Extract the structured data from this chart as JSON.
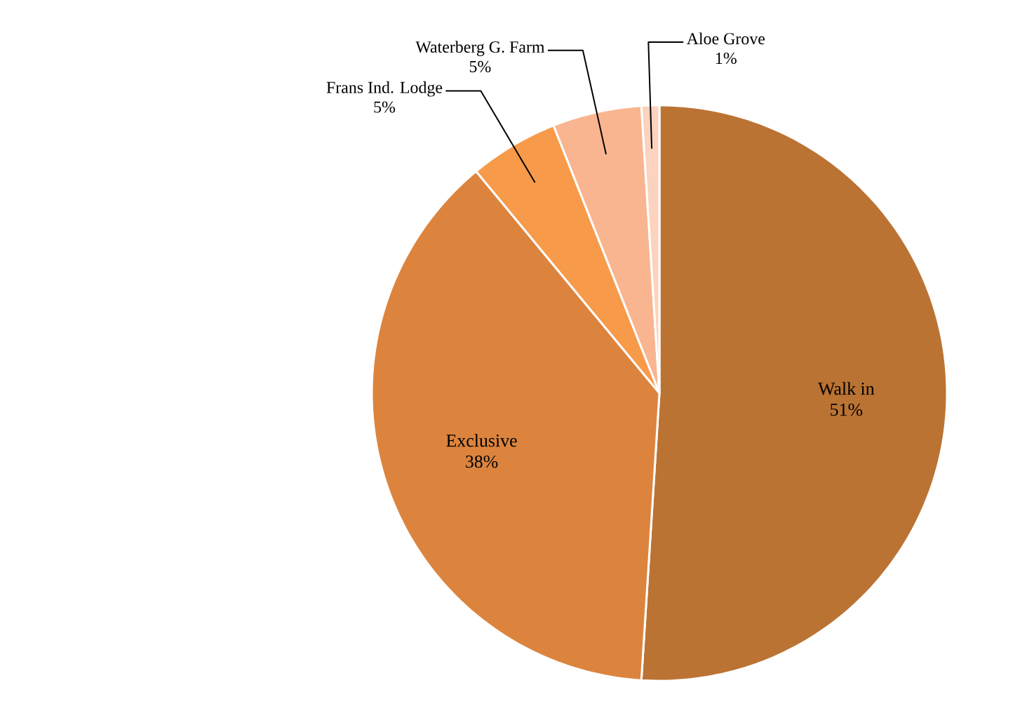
{
  "chart_data": {
    "type": "pie",
    "categories": [
      "Walk in",
      "Exclusive",
      "Frans Ind. Lodge",
      "Waterberg G. Farm",
      "Aloe Grove"
    ],
    "values": [
      51,
      38,
      5,
      5,
      1
    ],
    "value_labels": [
      "51%",
      "38%",
      "5%",
      "5%",
      "1%"
    ],
    "colors": [
      "#bb7334",
      "#dc843e",
      "#f79a4a",
      "#f9b58f",
      "#fbd3be"
    ]
  }
}
